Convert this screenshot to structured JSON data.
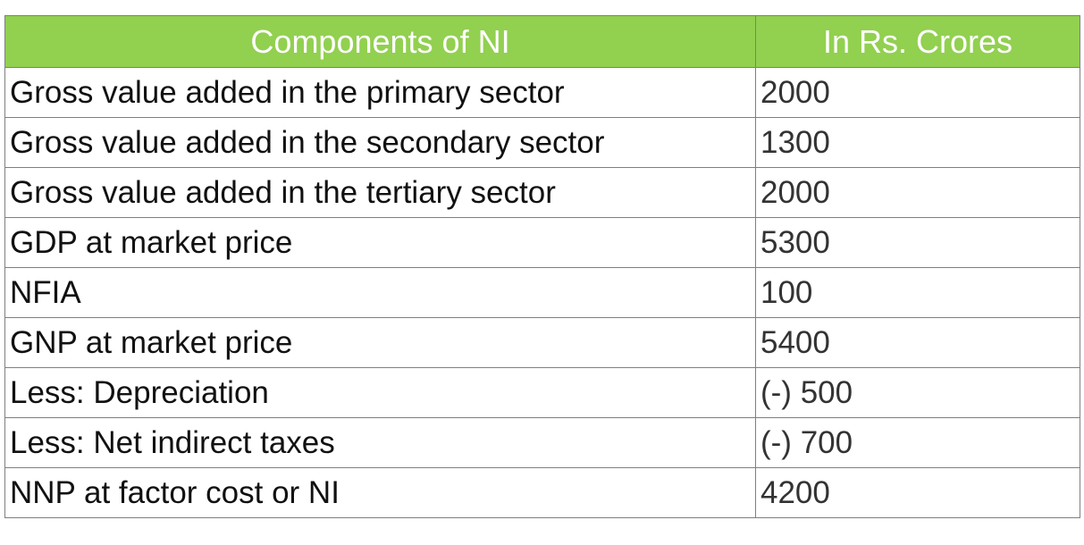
{
  "table": {
    "header": [
      "Components of NI",
      "In Rs. Crores"
    ],
    "rows": [
      [
        "Gross value added in the primary sector",
        "2000"
      ],
      [
        "Gross value added in the secondary sector",
        "1300"
      ],
      [
        "Gross value added in the tertiary sector",
        "2000"
      ],
      [
        "GDP at market price",
        "5300"
      ],
      [
        "NFIA",
        "100"
      ],
      [
        "GNP at market price",
        "5400"
      ],
      [
        "Less: Depreciation",
        "(-) 500"
      ],
      [
        "Less: Net indirect taxes",
        "(-) 700"
      ],
      [
        "NNP at factor cost or NI",
        "4200"
      ]
    ]
  }
}
